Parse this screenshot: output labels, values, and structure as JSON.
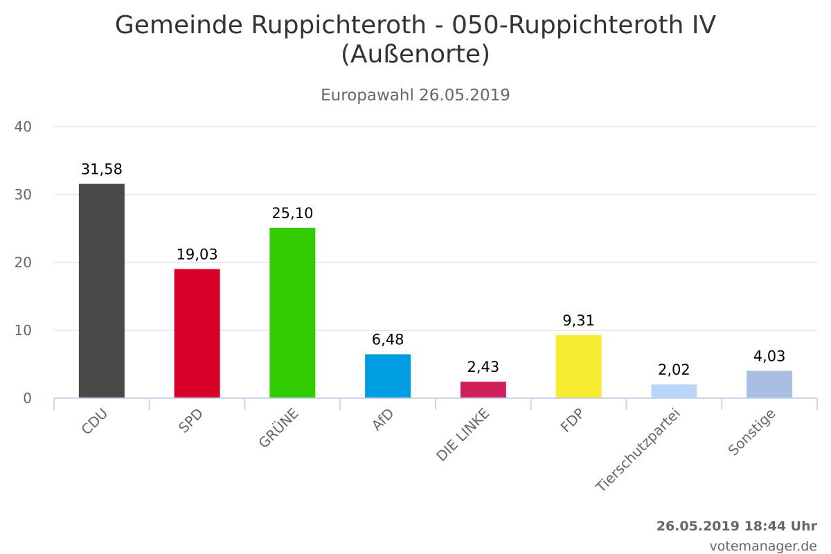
{
  "chart_data": {
    "type": "bar",
    "title_line1": "Gemeinde Ruppichteroth - 050-Ruppichteroth IV",
    "title_line2": "(Außenorte)",
    "subtitle": "Europawahl 26.05.2019",
    "categories": [
      "CDU",
      "SPD",
      "GRÜNE",
      "AfD",
      "DIE LINKE",
      "FDP",
      "Tierschutzpartei",
      "Sonstige"
    ],
    "values": [
      31.58,
      19.03,
      25.1,
      6.48,
      2.43,
      9.31,
      2.02,
      4.03
    ],
    "value_labels": [
      "31,58",
      "19,03",
      "25,10",
      "6,48",
      "2,43",
      "9,31",
      "2,02",
      "4,03"
    ],
    "colors": [
      "#494949",
      "#d70028",
      "#33cc00",
      "#009ee0",
      "#d01f5a",
      "#f7ec2f",
      "#bcd5fa",
      "#aabee1"
    ],
    "ylim": [
      0,
      40
    ],
    "yticks": [
      "0",
      "10",
      "20",
      "30",
      "40"
    ],
    "xlabel": "",
    "ylabel": "",
    "grid": true,
    "legend": "none"
  },
  "footer": {
    "timestamp": "26.05.2019 18:44 Uhr",
    "credit": "votemanager.de"
  }
}
